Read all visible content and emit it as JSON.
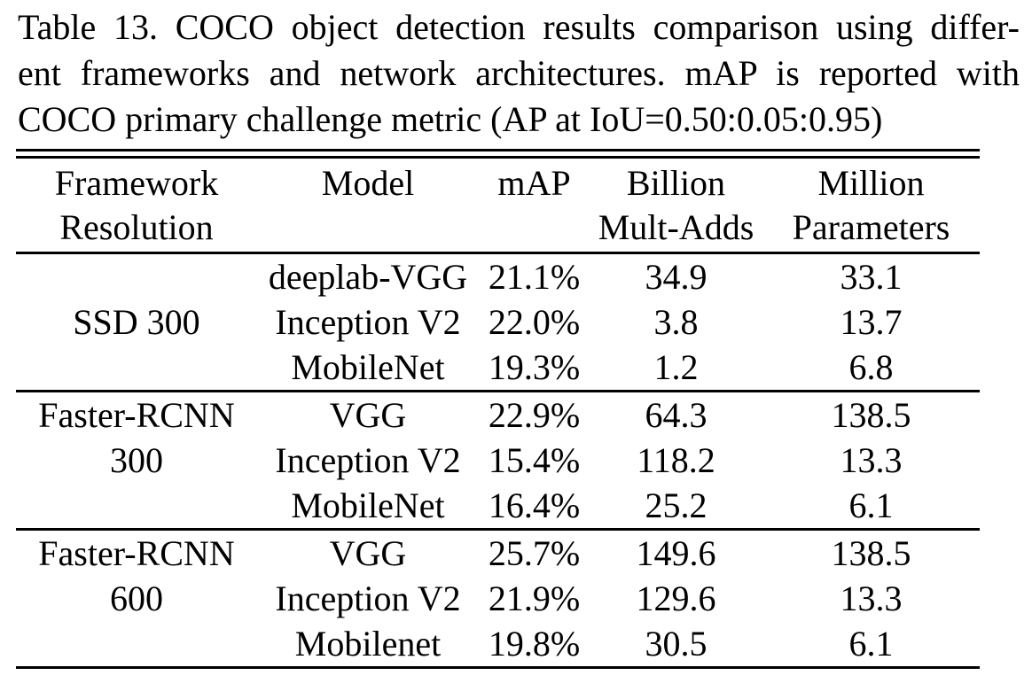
{
  "page": {
    "background_color": "#ffffff",
    "text_color": "#000000",
    "rule_color": "#000000"
  },
  "caption": {
    "lines": [
      "Table 13. COCO object detection results comparison using differ-",
      "ent frameworks and network architectures. mAP is reported with",
      "COCO primary challenge metric (AP at IoU=0.50:0.05:0.95)"
    ]
  },
  "table": {
    "header": {
      "col1": [
        "Framework",
        "Resolution"
      ],
      "col2": [
        "Model"
      ],
      "col3": [
        "mAP"
      ],
      "col4": [
        "Billion",
        "Mult-Adds"
      ],
      "col5": [
        "Million",
        "Parameters"
      ]
    },
    "groups": [
      {
        "framework": [
          "SSD 300"
        ],
        "rows": [
          {
            "model": "deeplab-VGG",
            "map": "21.1%",
            "mult_adds": "34.9",
            "params": "33.1"
          },
          {
            "model": "Inception V2",
            "map": "22.0%",
            "mult_adds": "3.8",
            "params": "13.7"
          },
          {
            "model": "MobileNet",
            "map": "19.3%",
            "mult_adds": "1.2",
            "params": "6.8"
          }
        ]
      },
      {
        "framework": [
          "Faster-RCNN",
          "300"
        ],
        "rows": [
          {
            "model": "VGG",
            "map": "22.9%",
            "mult_adds": "64.3",
            "params": "138.5"
          },
          {
            "model": "Inception V2",
            "map": "15.4%",
            "mult_adds": "118.2",
            "params": "13.3"
          },
          {
            "model": "MobileNet",
            "map": "16.4%",
            "mult_adds": "25.2",
            "params": "6.1"
          }
        ]
      },
      {
        "framework": [
          "Faster-RCNN",
          "600"
        ],
        "rows": [
          {
            "model": "VGG",
            "map": "25.7%",
            "mult_adds": "149.6",
            "params": "138.5"
          },
          {
            "model": "Inception V2",
            "map": "21.9%",
            "mult_adds": "129.6",
            "params": "13.3"
          },
          {
            "model": "Mobilenet",
            "map": "19.8%",
            "mult_adds": "30.5",
            "params": "6.1"
          }
        ]
      }
    ]
  }
}
